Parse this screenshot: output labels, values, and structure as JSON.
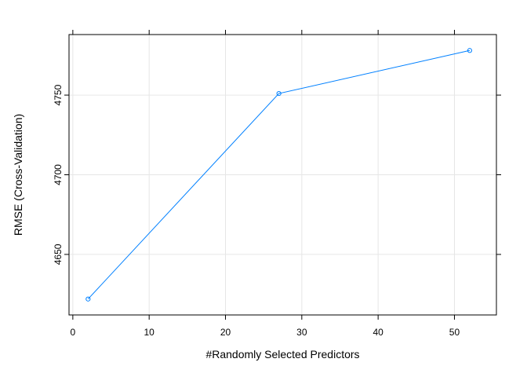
{
  "chart_data": {
    "type": "line",
    "title": "",
    "xlabel": "#Randomly Selected Predictors",
    "ylabel": "RMSE (Cross-Validation)",
    "x": [
      2,
      27,
      52
    ],
    "series": [
      {
        "values": [
          4622,
          4751,
          4778
        ]
      }
    ],
    "xlim": [
      -0.5,
      55.5
    ],
    "ylim": [
      4612,
      4788
    ],
    "x_ticks": [
      "0",
      "10",
      "20",
      "30",
      "40",
      "50"
    ],
    "y_ticks": [
      "4650",
      "4700",
      "4750"
    ],
    "grid": true,
    "legend": "none",
    "line_color": "#0080ff",
    "grid_color": "#e6e6e6"
  }
}
